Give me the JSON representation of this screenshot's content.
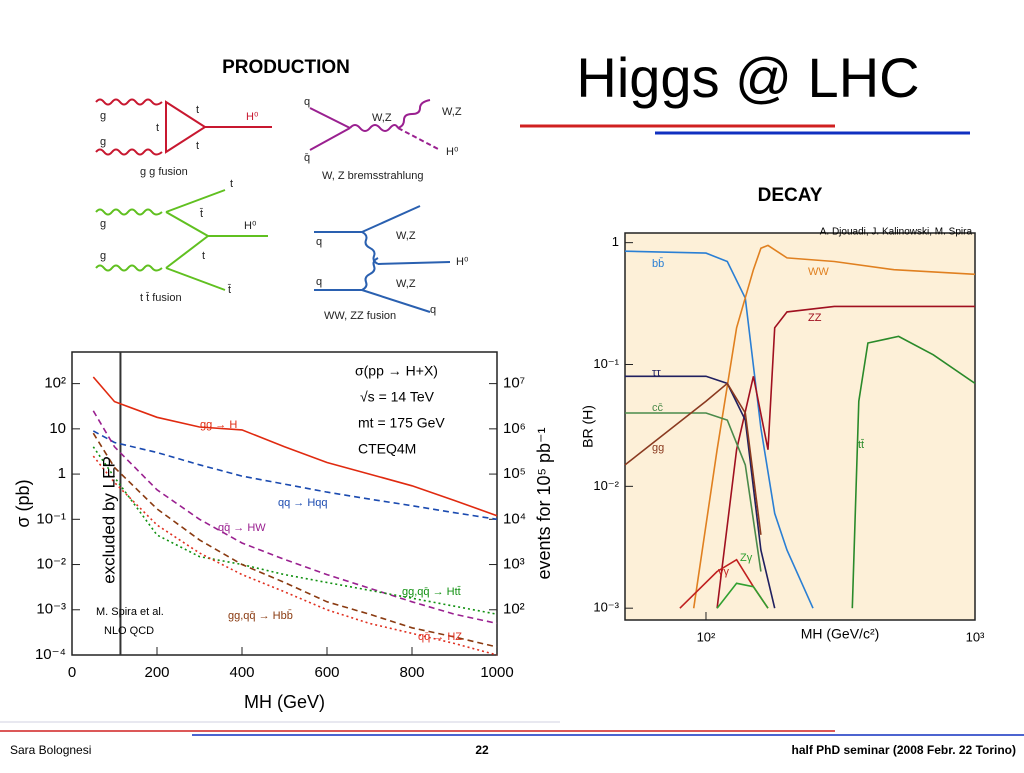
{
  "slide": {
    "title": "Higgs @ LHC",
    "production": "PRODUCTION",
    "decay": "DECAY",
    "footer": {
      "left": "Sara Bolognesi",
      "center": "22",
      "right": "half PhD seminar (2008 Febr. 22 Torino)"
    }
  },
  "diagrams": [
    {
      "caption": "g g fusion",
      "labels": [
        "g",
        "g",
        "t",
        "t",
        "t",
        "H⁰"
      ]
    },
    {
      "caption": "W, Z bremsstrahlung",
      "labels": [
        "q",
        "q̄",
        "W,Z",
        "W,Z",
        "H⁰"
      ]
    },
    {
      "caption": "t t̄ fusion",
      "labels": [
        "t",
        "g",
        "g",
        "t̄",
        "t",
        "H⁰",
        "t̄"
      ]
    },
    {
      "caption": "WW, ZZ fusion",
      "labels": [
        "q",
        "q",
        "W,Z",
        "W,Z",
        "H⁰",
        "q"
      ]
    }
  ],
  "chart_data": [
    {
      "type": "line",
      "ylog": true,
      "ylabel": "σ (pb)",
      "xlabel": "MH (GeV)",
      "y2label": "events for 10⁵ pb⁻¹",
      "annotations": [
        "σ(pp → H+X)",
        "√s = 14 TeV",
        "mt = 175 GeV",
        "CTEQ4M",
        "M. Spira et al.",
        "NLO QCD",
        "excluded by LEP"
      ],
      "lep_limit": 114,
      "xlim": [
        0,
        1000
      ],
      "xticks": [
        0,
        200,
        400,
        600,
        800,
        1000
      ],
      "ylim": [
        0.0001,
        500
      ],
      "yticks": [
        {
          "value": 100,
          "label": "10²"
        },
        10,
        1,
        {
          "value": 0.1,
          "label": "10⁻¹"
        },
        {
          "value": 0.01,
          "label": "10⁻²"
        },
        {
          "value": 0.001,
          "label": "10⁻³"
        },
        {
          "value": 0.0001,
          "label": "10⁻⁴"
        }
      ],
      "y2lim": [
        10,
        50000000
      ],
      "y2ticks": [
        {
          "value": 10000000,
          "label": "10⁷"
        },
        {
          "value": 1000000,
          "label": "10⁶"
        },
        {
          "value": 100000,
          "label": "10⁵"
        },
        {
          "value": 10000,
          "label": "10⁴"
        },
        {
          "value": 1000,
          "label": "10³"
        },
        {
          "value": 100,
          "label": "10²"
        }
      ],
      "x": [
        50,
        100,
        200,
        300,
        400,
        500,
        600,
        700,
        800,
        900,
        1000
      ],
      "series": [
        {
          "name": "gg → H",
          "color": "#e02a10",
          "style": "solid",
          "values": [
            140,
            40,
            18,
            11,
            9.5,
            4,
            1.8,
            1,
            0.55,
            0.26,
            0.12
          ]
        },
        {
          "name": "qq → Hqq",
          "color": "#1a4ab0",
          "style": "dashed",
          "values": [
            9,
            5,
            3,
            1.6,
            0.9,
            0.6,
            0.4,
            0.28,
            0.2,
            0.14,
            0.1
          ]
        },
        {
          "name": "qq̄ → HW",
          "color": "#9a2090",
          "style": "dashed",
          "values": [
            25,
            4,
            0.45,
            0.1,
            0.03,
            0.013,
            0.006,
            0.003,
            0.0015,
            0.0008,
            0.0005
          ]
        },
        {
          "name": "gg,qq̄ → Htt̄",
          "color": "#109010",
          "style": "dotted",
          "values": [
            4,
            0.85,
            0.045,
            0.015,
            0.01,
            0.006,
            0.004,
            0.0027,
            0.0018,
            0.0012,
            0.0008
          ]
        },
        {
          "name": "gg,qq̄ → Hbb̄",
          "color": "#8a3a10",
          "style": "dashed",
          "values": [
            8,
            1.4,
            0.17,
            0.035,
            0.01,
            0.004,
            0.0015,
            0.0008,
            0.0004,
            0.00025,
            0.00015
          ]
        },
        {
          "name": "qq̄ → HZ",
          "color": "#e03020",
          "style": "dotted",
          "values": [
            2.5,
            0.65,
            0.075,
            0.018,
            0.006,
            0.0025,
            0.001,
            0.0005,
            0.0003,
            0.00018,
            0.0001
          ]
        }
      ]
    },
    {
      "type": "line",
      "xlog": true,
      "ylog": true,
      "ylabel": "BR (H)",
      "xlabel": "MH (GeV/c²)",
      "annotations": [
        "A. Djouadi, J. Kalinowski, M. Spira"
      ],
      "background": "#fdf0d8",
      "xlim": [
        50,
        1000
      ],
      "xticks": [
        {
          "value": 100,
          "label": "10²"
        },
        {
          "value": 1000,
          "label": "10³"
        }
      ],
      "ylim": [
        0.0008,
        1.2
      ],
      "yticks": [
        1,
        {
          "value": 0.1,
          "label": "10⁻¹"
        },
        {
          "value": 0.01,
          "label": "10⁻²"
        },
        {
          "value": 0.001,
          "label": "10⁻³"
        }
      ],
      "series": [
        {
          "name": "bb̄",
          "color": "#2a7fd4",
          "x": [
            50,
            100,
            120,
            140,
            160,
            180,
            200,
            250
          ],
          "values": [
            0.85,
            0.82,
            0.7,
            0.35,
            0.03,
            0.006,
            0.003,
            0.001
          ]
        },
        {
          "name": "WW",
          "color": "#e08020",
          "x": [
            90,
            110,
            130,
            150,
            160,
            170,
            200,
            300,
            500,
            1000
          ],
          "values": [
            0.001,
            0.02,
            0.2,
            0.6,
            0.9,
            0.95,
            0.75,
            0.7,
            0.6,
            0.55
          ]
        },
        {
          "name": "ZZ",
          "color": "#a01020",
          "x": [
            110,
            130,
            150,
            170,
            180,
            200,
            300,
            1000
          ],
          "values": [
            0.001,
            0.02,
            0.08,
            0.02,
            0.2,
            0.27,
            0.3,
            0.3
          ]
        },
        {
          "name": "tt̄",
          "color": "#2a8a2a",
          "x": [
            350,
            370,
            400,
            520,
            700,
            1000
          ],
          "values": [
            0.001,
            0.05,
            0.15,
            0.17,
            0.12,
            0.07
          ]
        },
        {
          "name": "ττ",
          "color": "#202060",
          "x": [
            50,
            100,
            120,
            140,
            160,
            180
          ],
          "values": [
            0.08,
            0.08,
            0.07,
            0.035,
            0.003,
            0.001
          ]
        },
        {
          "name": "cc̄",
          "color": "#4a8a4a",
          "x": [
            50,
            100,
            120,
            140,
            160
          ],
          "values": [
            0.04,
            0.04,
            0.035,
            0.015,
            0.002
          ]
        },
        {
          "name": "gg",
          "color": "#8a3a20",
          "x": [
            50,
            100,
            120,
            140,
            160
          ],
          "values": [
            0.015,
            0.05,
            0.07,
            0.04,
            0.004
          ]
        },
        {
          "name": "γγ",
          "color": "#c02020",
          "x": [
            80,
            110,
            130,
            150,
            170
          ],
          "values": [
            0.001,
            0.002,
            0.0025,
            0.0015,
            0.001
          ]
        },
        {
          "name": "Zγ",
          "color": "#30a030",
          "x": [
            110,
            130,
            150,
            170
          ],
          "values": [
            0.001,
            0.0016,
            0.0015,
            0.001
          ]
        }
      ]
    }
  ]
}
